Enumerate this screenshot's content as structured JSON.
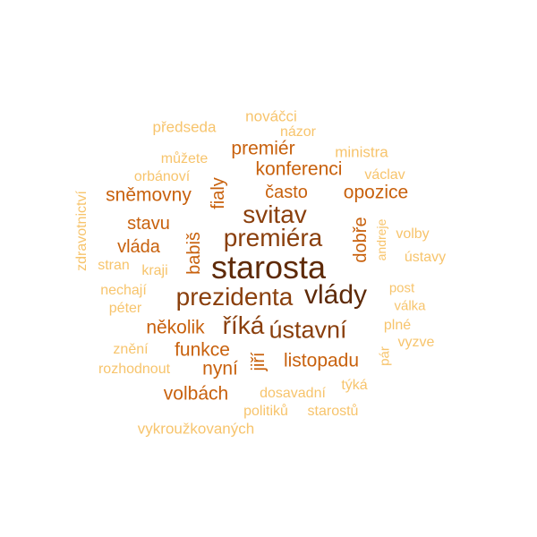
{
  "palette": {
    "level1": "#f7c46c",
    "level2": "#e8851e",
    "level3": "#c8610d",
    "level4": "#8a3f0c",
    "level5": "#5e2a08"
  },
  "words": [
    {
      "text": "starosta",
      "level": 5
    },
    {
      "text": "vlády",
      "level": 5
    },
    {
      "text": "prezidenta",
      "level": 4
    },
    {
      "text": "premiéra",
      "level": 4
    },
    {
      "text": "svitav",
      "level": 4
    },
    {
      "text": "říká",
      "level": 4
    },
    {
      "text": "ústavní",
      "level": 4
    },
    {
      "text": "opozice",
      "level": 3
    },
    {
      "text": "sněmovny",
      "level": 3
    },
    {
      "text": "konferenci",
      "level": 3
    },
    {
      "text": "premiér",
      "level": 3
    },
    {
      "text": "často",
      "level": 3
    },
    {
      "text": "stavu",
      "level": 3
    },
    {
      "text": "vláda",
      "level": 3
    },
    {
      "text": "několik",
      "level": 3
    },
    {
      "text": "funkce",
      "level": 3
    },
    {
      "text": "listopadu",
      "level": 3
    },
    {
      "text": "volbách",
      "level": 3
    },
    {
      "text": "nyní",
      "level": 3
    },
    {
      "text": "fialy",
      "level": 3
    },
    {
      "text": "babiš",
      "level": 3
    },
    {
      "text": "dobře",
      "level": 3
    },
    {
      "text": "jiří",
      "level": 3
    },
    {
      "text": "nováčci",
      "level": 1
    },
    {
      "text": "předseda",
      "level": 1
    },
    {
      "text": "názor",
      "level": 1
    },
    {
      "text": "ministra",
      "level": 1
    },
    {
      "text": "můžete",
      "level": 1
    },
    {
      "text": "orbánoví",
      "level": 1
    },
    {
      "text": "václav",
      "level": 1
    },
    {
      "text": "volby",
      "level": 1
    },
    {
      "text": "ústavy",
      "level": 1
    },
    {
      "text": "stran",
      "level": 1
    },
    {
      "text": "kraji",
      "level": 1
    },
    {
      "text": "post",
      "level": 1
    },
    {
      "text": "nechají",
      "level": 1
    },
    {
      "text": "péter",
      "level": 1
    },
    {
      "text": "válka",
      "level": 1
    },
    {
      "text": "plné",
      "level": 1
    },
    {
      "text": "znění",
      "level": 1
    },
    {
      "text": "vyzve",
      "level": 1
    },
    {
      "text": "rozhodnout",
      "level": 1
    },
    {
      "text": "týká",
      "level": 1
    },
    {
      "text": "dosavadní",
      "level": 1
    },
    {
      "text": "politiků",
      "level": 1
    },
    {
      "text": "starostů",
      "level": 1
    },
    {
      "text": "vykroužkovaných",
      "level": 1
    },
    {
      "text": "zdravotnictví",
      "level": 1
    },
    {
      "text": "andreje",
      "level": 1
    },
    {
      "text": "pár",
      "level": 1
    }
  ]
}
